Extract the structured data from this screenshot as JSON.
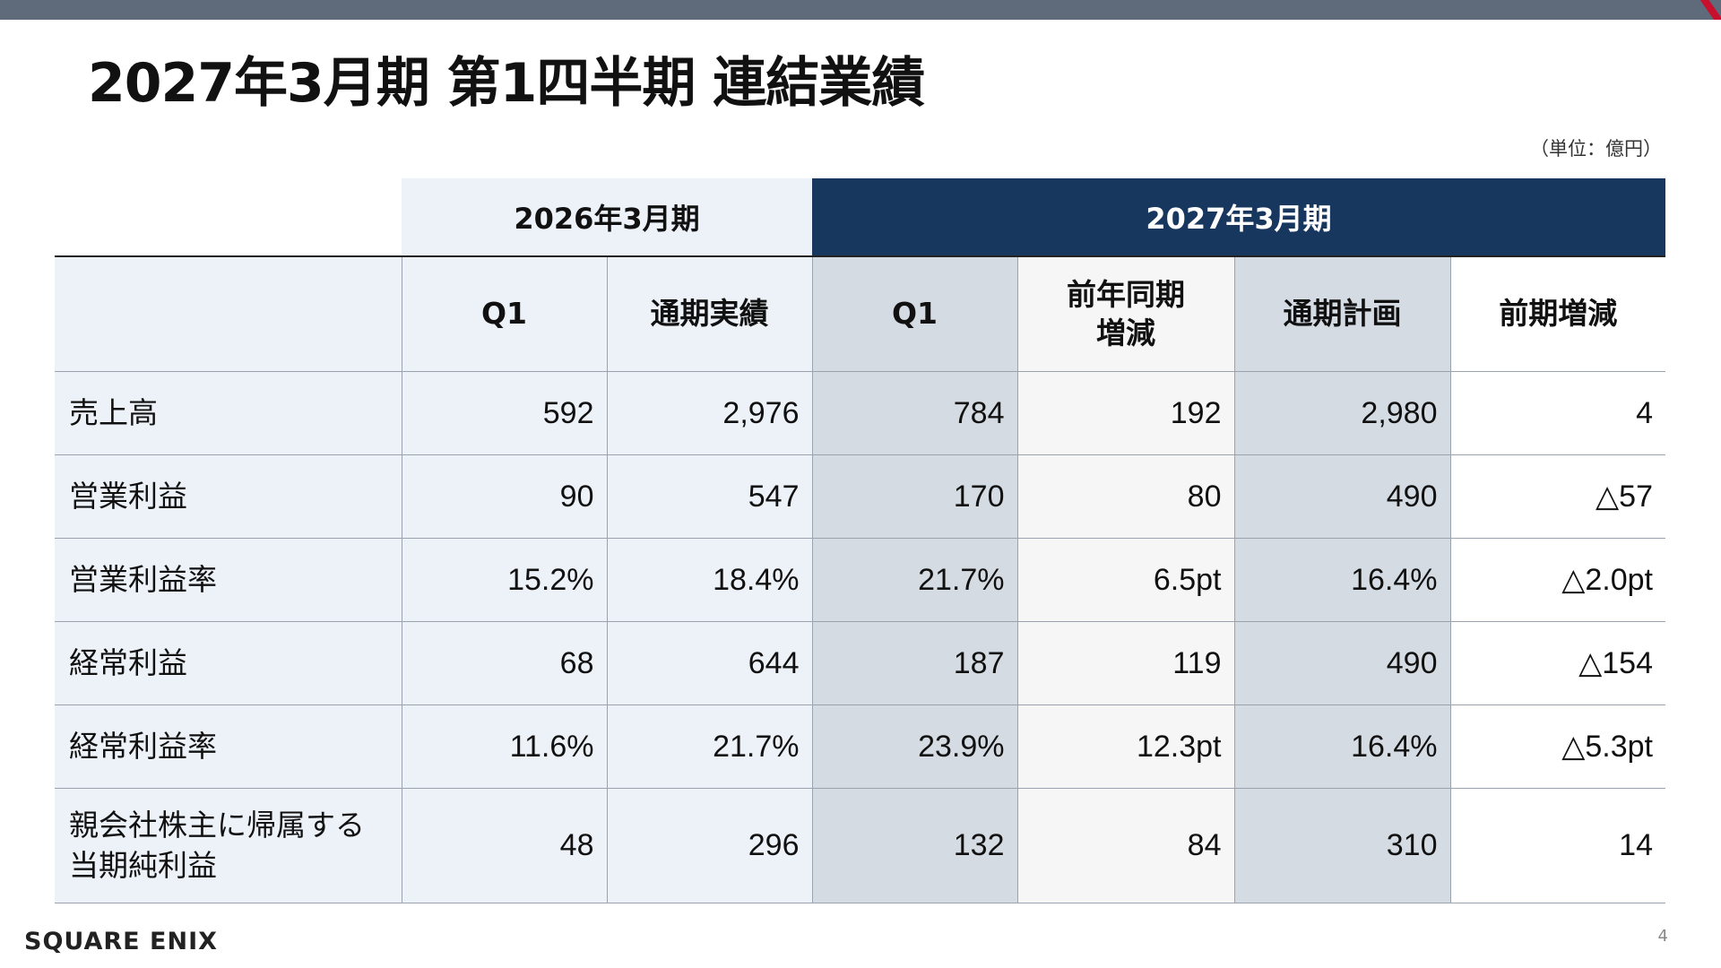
{
  "title": "2027年3月期 第1四半期 連結業績",
  "unit": "（単位：億円）",
  "groups": {
    "prev": "2026年3月期",
    "curr": "2027年3月期"
  },
  "columns": [
    "Q1",
    "通期実績",
    "Q1",
    "前年同期\n増減",
    "通期計画",
    "前期増減"
  ],
  "rows": [
    {
      "label": "売上高",
      "values": [
        "592",
        "2,976",
        "784",
        "192",
        "2,980",
        "4"
      ]
    },
    {
      "label": "営業利益",
      "values": [
        "90",
        "547",
        "170",
        "80",
        "490",
        "△57"
      ]
    },
    {
      "label": "営業利益率",
      "values": [
        "15.2%",
        "18.4%",
        "21.7%",
        "6.5pt",
        "16.4%",
        "△2.0pt"
      ]
    },
    {
      "label": "経常利益",
      "values": [
        "68",
        "644",
        "187",
        "119",
        "490",
        "△154"
      ]
    },
    {
      "label": "経常利益率",
      "values": [
        "11.6%",
        "21.7%",
        "23.9%",
        "12.3pt",
        "16.4%",
        "△5.3pt"
      ]
    },
    {
      "label": "親会社株主に帰属する\n当期純利益",
      "values": [
        "48",
        "296",
        "132",
        "84",
        "310",
        "14"
      ]
    }
  ],
  "footer": {
    "logo": "SQUARE ENIX",
    "page": "4"
  }
}
